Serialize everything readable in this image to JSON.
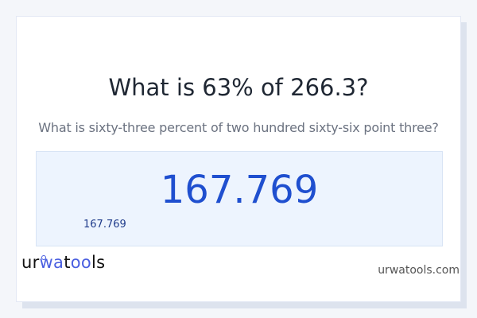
{
  "question": {
    "title": "What is 63% of 266.3?",
    "subtitle": "What is sixty-three percent of two hundred sixty-six point three?"
  },
  "result": {
    "value": "167.769",
    "value_small": "167.769"
  },
  "footer": {
    "logo_text": "urwatools",
    "site": "urwatools.com"
  },
  "colors": {
    "accent": "#1f4fcf",
    "result_bg": "#edf4fe",
    "logo_accent": "#4a5fe0"
  }
}
